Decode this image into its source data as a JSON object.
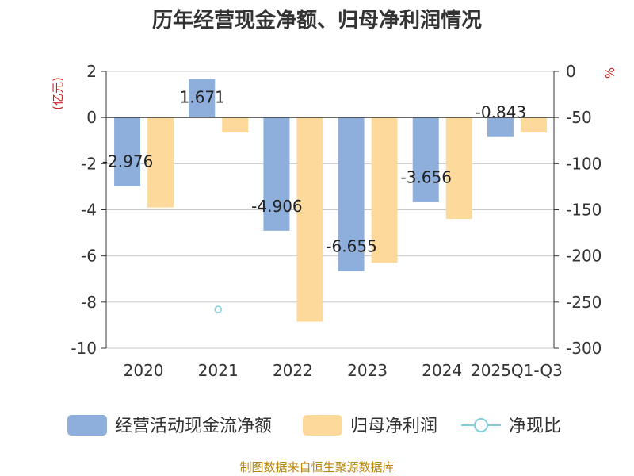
{
  "chart_data": {
    "type": "bar",
    "title": "历年经营现金净额、归母净利润情况",
    "categories": [
      "2020",
      "2021",
      "2022",
      "2023",
      "2024",
      "2025Q1-Q3"
    ],
    "left_axis": {
      "unit": "(亿元)",
      "ylim": [
        -10,
        2
      ],
      "ticks": [
        2,
        0,
        -2,
        -4,
        -6,
        -8,
        -10
      ]
    },
    "right_axis": {
      "unit": "%",
      "ylim": [
        -300,
        0
      ],
      "ticks": [
        0,
        -50,
        -100,
        -150,
        -200,
        -250,
        -300
      ]
    },
    "series": [
      {
        "name": "经营活动现金流净额",
        "axis": "left",
        "color": "#8eaedb",
        "values": [
          -2.976,
          1.671,
          -4.906,
          -6.655,
          -3.656,
          -0.843
        ],
        "labels": [
          "-2.976",
          "1.671",
          "-4.906",
          "-6.655",
          "-3.656",
          "-0.843"
        ]
      },
      {
        "name": "归母净利润",
        "axis": "left",
        "color": "#fdd99b",
        "values": [
          -3.9,
          -0.65,
          -8.85,
          -6.3,
          -4.4,
          -0.65
        ]
      },
      {
        "name": "净现比",
        "axis": "right",
        "type": "scatter",
        "color": "#7fd0dc",
        "values": [
          null,
          -258,
          null,
          null,
          null,
          null
        ]
      }
    ],
    "grid": true,
    "legend_position": "bottom"
  },
  "source": "制图数据来自恒生聚源数据库"
}
